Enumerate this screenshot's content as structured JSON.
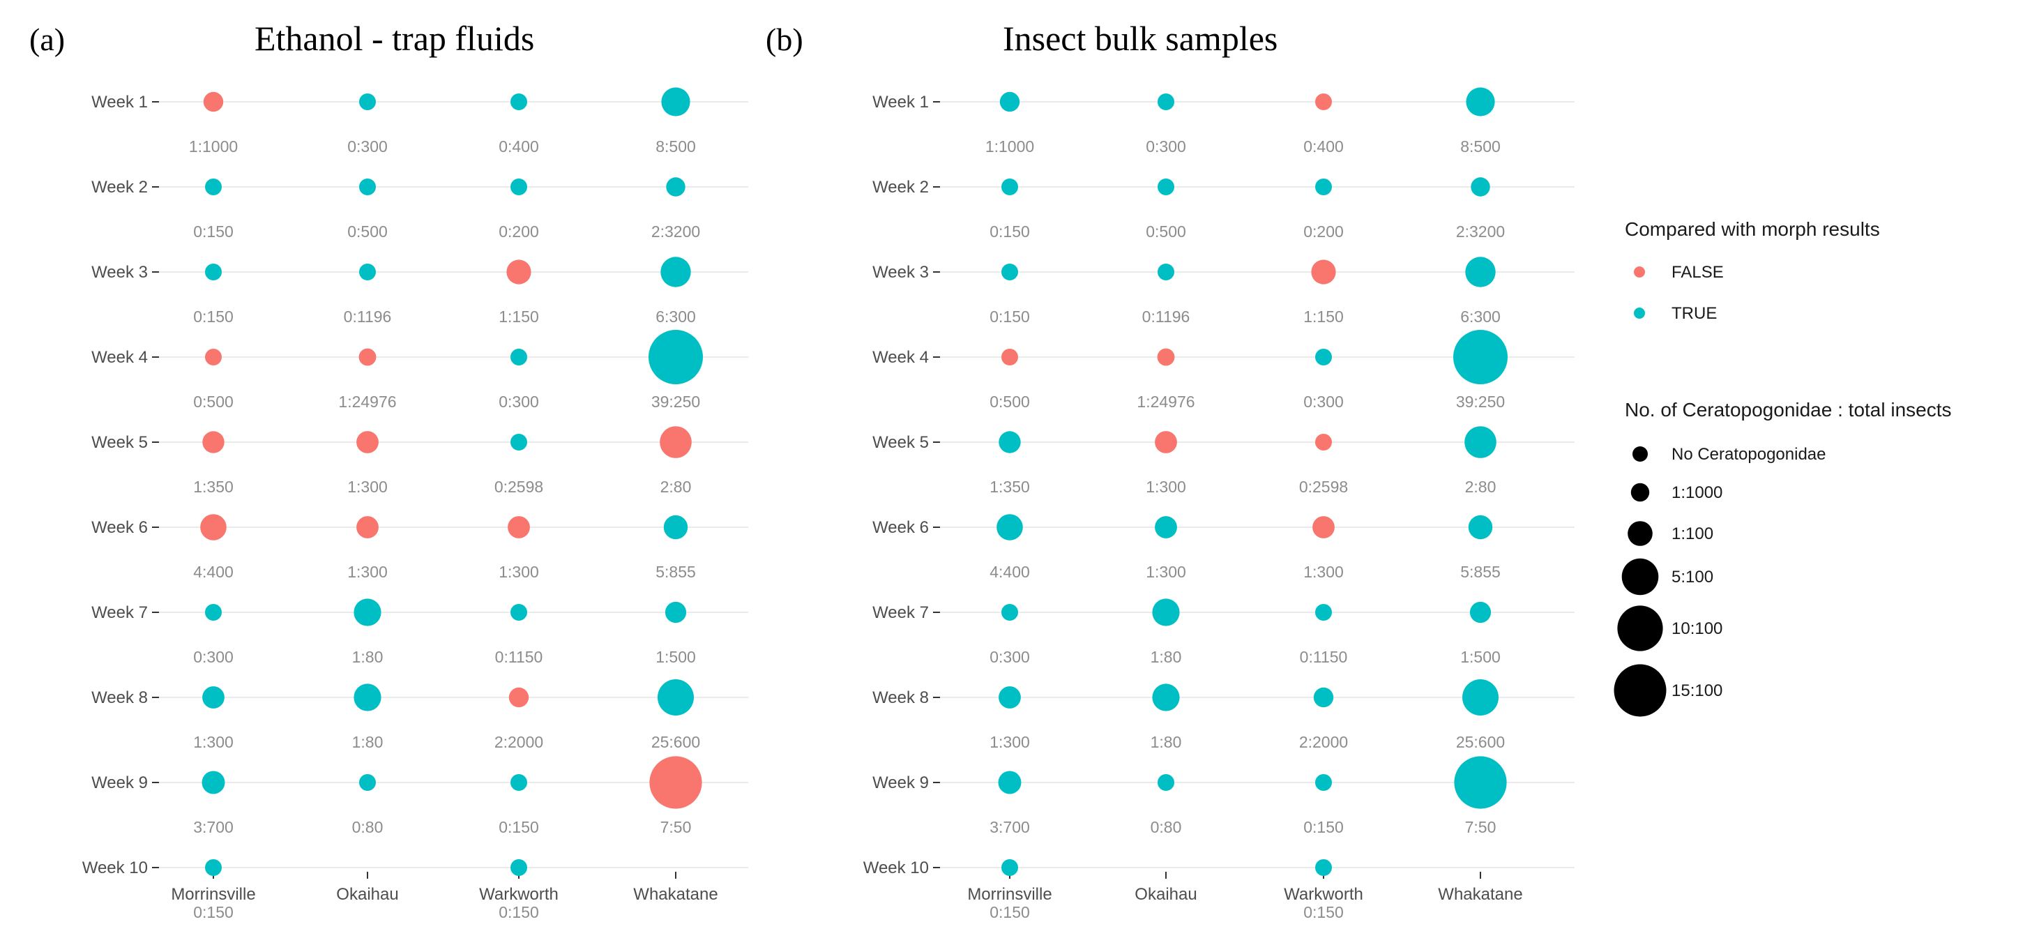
{
  "colors": {
    "FALSE": "#F8766D",
    "TRUE": "#00BFC4",
    "legend_size": "#000000"
  },
  "chart_data": [
    {
      "type": "scatter",
      "panel": "(a)",
      "title": "Ethanol - trap fluids",
      "categories": [
        "Morrinsville",
        "Okaihau",
        "Warkworth",
        "Whakatane"
      ],
      "weeks": [
        "Week 1",
        "Week 2",
        "Week 3",
        "Week 4",
        "Week 5",
        "Week 6",
        "Week 7",
        "Week 8",
        "Week 9",
        "Week 10"
      ],
      "points": [
        {
          "site": "Morrinsville",
          "week": 1,
          "label": "1:1000",
          "match": false
        },
        {
          "site": "Okaihau",
          "week": 1,
          "label": "0:300",
          "match": true
        },
        {
          "site": "Warkworth",
          "week": 1,
          "label": "0:400",
          "match": true
        },
        {
          "site": "Whakatane",
          "week": 1,
          "label": "8:500",
          "match": true
        },
        {
          "site": "Morrinsville",
          "week": 2,
          "label": "0:150",
          "match": true
        },
        {
          "site": "Okaihau",
          "week": 2,
          "label": "0:500",
          "match": true
        },
        {
          "site": "Warkworth",
          "week": 2,
          "label": "0:200",
          "match": true
        },
        {
          "site": "Whakatane",
          "week": 2,
          "label": "2:3200",
          "match": true
        },
        {
          "site": "Morrinsville",
          "week": 3,
          "label": "0:150",
          "match": true
        },
        {
          "site": "Okaihau",
          "week": 3,
          "label": "0:1196",
          "match": true
        },
        {
          "site": "Warkworth",
          "week": 3,
          "label": "1:150",
          "match": false
        },
        {
          "site": "Whakatane",
          "week": 3,
          "label": "6:300",
          "match": true
        },
        {
          "site": "Morrinsville",
          "week": 4,
          "label": "0:500",
          "match": false
        },
        {
          "site": "Okaihau",
          "week": 4,
          "label": "1:24976",
          "match": false
        },
        {
          "site": "Warkworth",
          "week": 4,
          "label": "0:300",
          "match": true
        },
        {
          "site": "Whakatane",
          "week": 4,
          "label": "39:250",
          "match": true
        },
        {
          "site": "Morrinsville",
          "week": 5,
          "label": "1:350",
          "match": false
        },
        {
          "site": "Okaihau",
          "week": 5,
          "label": "1:300",
          "match": false
        },
        {
          "site": "Warkworth",
          "week": 5,
          "label": "0:2598",
          "match": true
        },
        {
          "site": "Whakatane",
          "week": 5,
          "label": "2:80",
          "match": false
        },
        {
          "site": "Morrinsville",
          "week": 6,
          "label": "4:400",
          "match": false
        },
        {
          "site": "Okaihau",
          "week": 6,
          "label": "1:300",
          "match": false
        },
        {
          "site": "Warkworth",
          "week": 6,
          "label": "1:300",
          "match": false
        },
        {
          "site": "Whakatane",
          "week": 6,
          "label": "5:855",
          "match": true
        },
        {
          "site": "Morrinsville",
          "week": 7,
          "label": "0:300",
          "match": true
        },
        {
          "site": "Okaihau",
          "week": 7,
          "label": "1:80",
          "match": true
        },
        {
          "site": "Warkworth",
          "week": 7,
          "label": "0:1150",
          "match": true
        },
        {
          "site": "Whakatane",
          "week": 7,
          "label": "1:500",
          "match": true
        },
        {
          "site": "Morrinsville",
          "week": 8,
          "label": "1:300",
          "match": true
        },
        {
          "site": "Okaihau",
          "week": 8,
          "label": "1:80",
          "match": true
        },
        {
          "site": "Warkworth",
          "week": 8,
          "label": "2:2000",
          "match": false
        },
        {
          "site": "Whakatane",
          "week": 8,
          "label": "25:600",
          "match": true
        },
        {
          "site": "Morrinsville",
          "week": 9,
          "label": "3:700",
          "match": true
        },
        {
          "site": "Okaihau",
          "week": 9,
          "label": "0:80",
          "match": true
        },
        {
          "site": "Warkworth",
          "week": 9,
          "label": "0:150",
          "match": true
        },
        {
          "site": "Whakatane",
          "week": 9,
          "label": "7:50",
          "match": false
        },
        {
          "site": "Morrinsville",
          "week": 10,
          "label": "0:150",
          "match": true
        },
        {
          "site": "Warkworth",
          "week": 10,
          "label": "0:150",
          "match": true
        }
      ]
    },
    {
      "type": "scatter",
      "panel": "(b)",
      "title": "Insect bulk samples",
      "categories": [
        "Morrinsville",
        "Okaihau",
        "Warkworth",
        "Whakatane"
      ],
      "weeks": [
        "Week 1",
        "Week 2",
        "Week 3",
        "Week 4",
        "Week 5",
        "Week 6",
        "Week 7",
        "Week 8",
        "Week 9",
        "Week 10"
      ],
      "points": [
        {
          "site": "Morrinsville",
          "week": 1,
          "label": "1:1000",
          "match": true
        },
        {
          "site": "Okaihau",
          "week": 1,
          "label": "0:300",
          "match": true
        },
        {
          "site": "Warkworth",
          "week": 1,
          "label": "0:400",
          "match": false
        },
        {
          "site": "Whakatane",
          "week": 1,
          "label": "8:500",
          "match": true
        },
        {
          "site": "Morrinsville",
          "week": 2,
          "label": "0:150",
          "match": true
        },
        {
          "site": "Okaihau",
          "week": 2,
          "label": "0:500",
          "match": true
        },
        {
          "site": "Warkworth",
          "week": 2,
          "label": "0:200",
          "match": true
        },
        {
          "site": "Whakatane",
          "week": 2,
          "label": "2:3200",
          "match": true
        },
        {
          "site": "Morrinsville",
          "week": 3,
          "label": "0:150",
          "match": true
        },
        {
          "site": "Okaihau",
          "week": 3,
          "label": "0:1196",
          "match": true
        },
        {
          "site": "Warkworth",
          "week": 3,
          "label": "1:150",
          "match": false
        },
        {
          "site": "Whakatane",
          "week": 3,
          "label": "6:300",
          "match": true
        },
        {
          "site": "Morrinsville",
          "week": 4,
          "label": "0:500",
          "match": false
        },
        {
          "site": "Okaihau",
          "week": 4,
          "label": "1:24976",
          "match": false
        },
        {
          "site": "Warkworth",
          "week": 4,
          "label": "0:300",
          "match": true
        },
        {
          "site": "Whakatane",
          "week": 4,
          "label": "39:250",
          "match": true
        },
        {
          "site": "Morrinsville",
          "week": 5,
          "label": "1:350",
          "match": true
        },
        {
          "site": "Okaihau",
          "week": 5,
          "label": "1:300",
          "match": false
        },
        {
          "site": "Warkworth",
          "week": 5,
          "label": "0:2598",
          "match": false
        },
        {
          "site": "Whakatane",
          "week": 5,
          "label": "2:80",
          "match": true
        },
        {
          "site": "Morrinsville",
          "week": 6,
          "label": "4:400",
          "match": true
        },
        {
          "site": "Okaihau",
          "week": 6,
          "label": "1:300",
          "match": true
        },
        {
          "site": "Warkworth",
          "week": 6,
          "label": "1:300",
          "match": false
        },
        {
          "site": "Whakatane",
          "week": 6,
          "label": "5:855",
          "match": true
        },
        {
          "site": "Morrinsville",
          "week": 7,
          "label": "0:300",
          "match": true
        },
        {
          "site": "Okaihau",
          "week": 7,
          "label": "1:80",
          "match": true
        },
        {
          "site": "Warkworth",
          "week": 7,
          "label": "0:1150",
          "match": true
        },
        {
          "site": "Whakatane",
          "week": 7,
          "label": "1:500",
          "match": true
        },
        {
          "site": "Morrinsville",
          "week": 8,
          "label": "1:300",
          "match": true
        },
        {
          "site": "Okaihau",
          "week": 8,
          "label": "1:80",
          "match": true
        },
        {
          "site": "Warkworth",
          "week": 8,
          "label": "2:2000",
          "match": true
        },
        {
          "site": "Whakatane",
          "week": 8,
          "label": "25:600",
          "match": true
        },
        {
          "site": "Morrinsville",
          "week": 9,
          "label": "3:700",
          "match": true
        },
        {
          "site": "Okaihau",
          "week": 9,
          "label": "0:80",
          "match": true
        },
        {
          "site": "Warkworth",
          "week": 9,
          "label": "0:150",
          "match": true
        },
        {
          "site": "Whakatane",
          "week": 9,
          "label": "7:50",
          "match": true
        },
        {
          "site": "Morrinsville",
          "week": 10,
          "label": "0:150",
          "match": true
        },
        {
          "site": "Warkworth",
          "week": 10,
          "label": "0:150",
          "match": true
        }
      ]
    }
  ],
  "legend": {
    "color_title": "Compared with morph results",
    "color_items": [
      {
        "label": "FALSE",
        "color": "#F8766D"
      },
      {
        "label": "TRUE",
        "color": "#00BFC4"
      }
    ],
    "size_title": "No. of Ceratopogonidae : total insects",
    "size_items": [
      {
        "label": "No Ceratopogonidae",
        "ratio": 0
      },
      {
        "label": "1:1000",
        "ratio": 0.001
      },
      {
        "label": "1:100",
        "ratio": 0.01
      },
      {
        "label": "5:100",
        "ratio": 0.05
      },
      {
        "label": "10:100",
        "ratio": 0.1
      },
      {
        "label": "15:100",
        "ratio": 0.15
      }
    ]
  }
}
